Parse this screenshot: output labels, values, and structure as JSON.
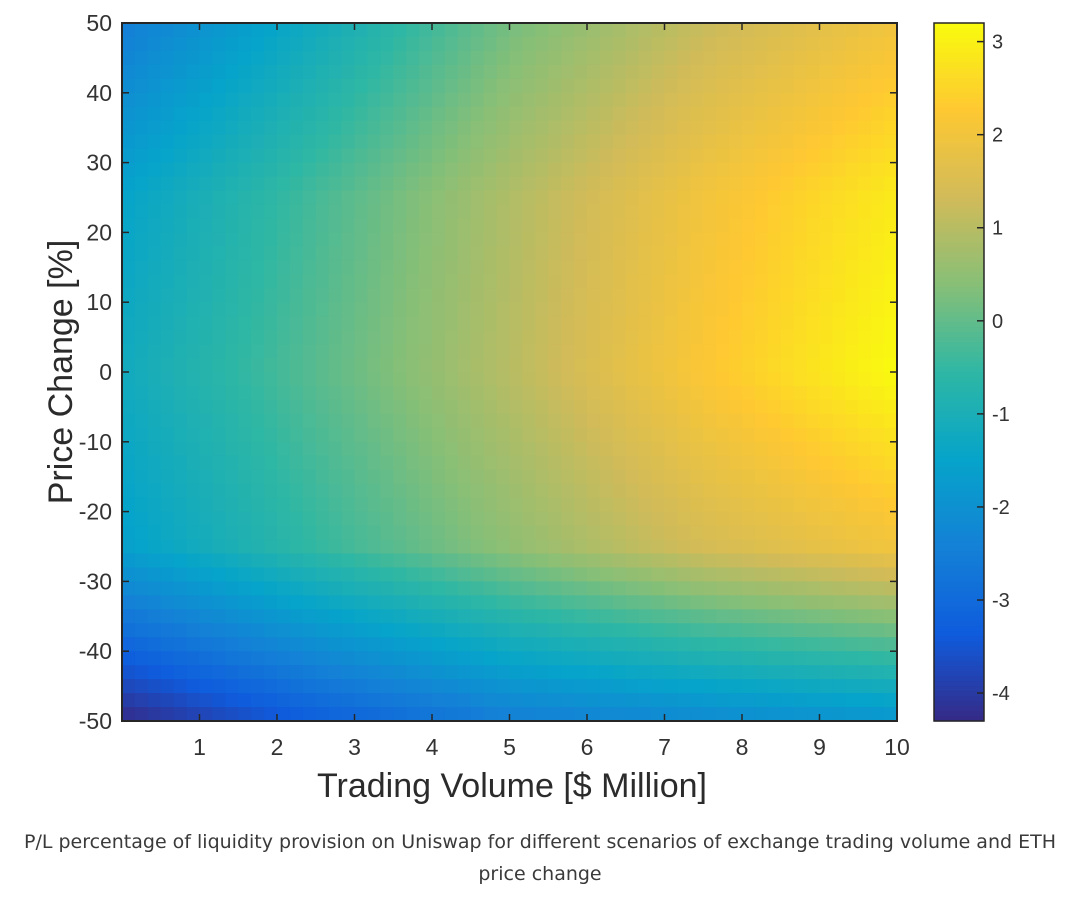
{
  "caption": "P/L percentage of liquidity provision on Uniswap for different scenarios of exchange trading volume and ETH price change",
  "chart_data": {
    "type": "heatmap",
    "title": "",
    "xlabel": "Trading Volume [$ Million]",
    "ylabel": "Price Change [%]",
    "xlim": [
      0,
      10
    ],
    "ylim": [
      -50,
      50
    ],
    "x_ticks": [
      1,
      2,
      3,
      4,
      5,
      6,
      7,
      8,
      9,
      10
    ],
    "y_ticks": [
      50,
      40,
      30,
      20,
      10,
      0,
      -10,
      -20,
      -30,
      -40,
      -50
    ],
    "colorbar": {
      "label": "",
      "range": [
        -4.3,
        3.2
      ],
      "ticks": [
        3,
        2,
        1,
        0,
        -1,
        -2,
        -3,
        -4
      ],
      "colormap": "parula",
      "colors": [
        "#352a87",
        "#0f5cdd",
        "#1481d6",
        "#06a4ca",
        "#2eb7a4",
        "#87bf77",
        "#d1bb59",
        "#fec832",
        "#f9fb0e"
      ]
    },
    "grid": false,
    "z_min": -4.3,
    "z_max": 3.2,
    "z_samples": {
      "x": [
        0,
        2.5,
        5,
        7.5,
        10
      ],
      "y": [
        50,
        25,
        0,
        -25,
        -50
      ],
      "z": [
        [
          -2.5,
          -1.2,
          0.2,
          1.2,
          2.0
        ],
        [
          -1.5,
          -0.3,
          0.9,
          2.0,
          2.9
        ],
        [
          -1.2,
          -0.1,
          1.0,
          2.2,
          3.2
        ],
        [
          -1.6,
          -0.5,
          0.5,
          1.4,
          2.0
        ],
        [
          -4.3,
          -3.3,
          -2.5,
          -2.2,
          -1.9
        ]
      ]
    }
  }
}
